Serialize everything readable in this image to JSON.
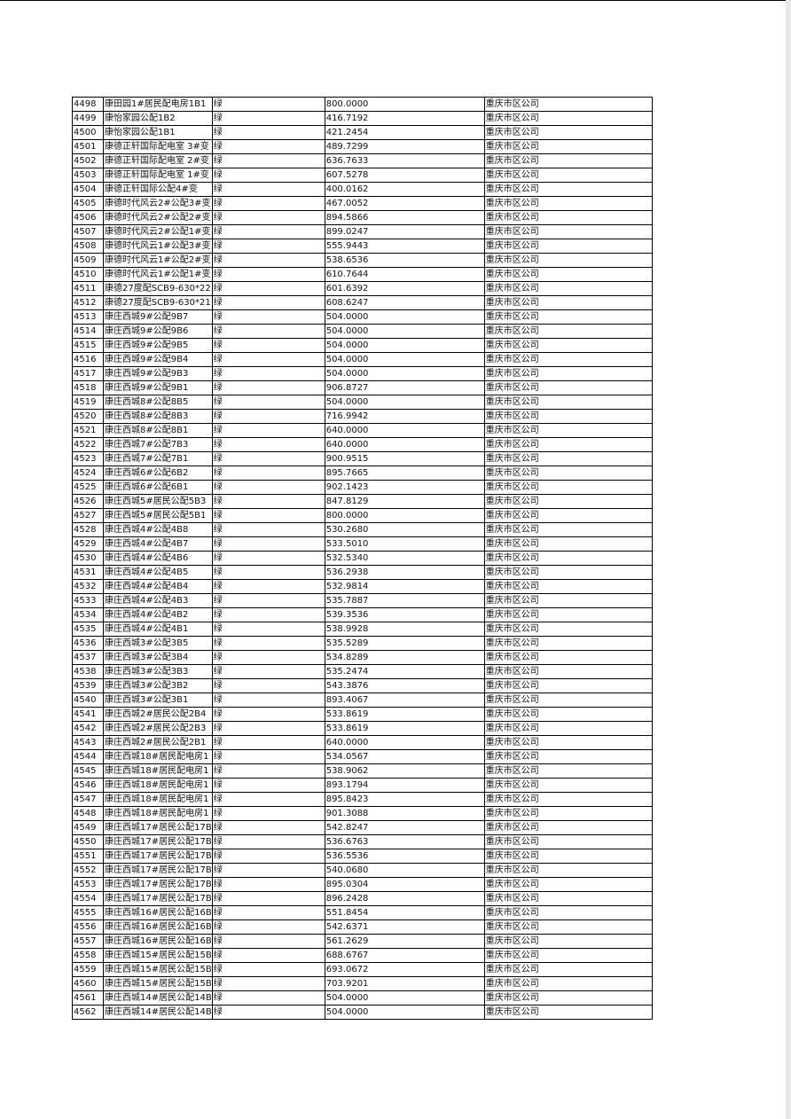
{
  "rows": [
    [
      "4498",
      "康田园1#居民配电房1B1",
      "绿",
      "800.0000",
      "重庆市区公司"
    ],
    [
      "4499",
      "康怡家园公配1B2",
      "绿",
      "416.7192",
      "重庆市区公司"
    ],
    [
      "4500",
      "康怡家园公配1B1",
      "绿",
      "421.2454",
      "重庆市区公司"
    ],
    [
      "4501",
      "康德正轩国际配电室 3#变",
      "绿",
      "489.7299",
      "重庆市区公司"
    ],
    [
      "4502",
      "康德正轩国际配电室 2#变",
      "绿",
      "636.7633",
      "重庆市区公司"
    ],
    [
      "4503",
      "康德正轩国际配电室 1#变",
      "绿",
      "607.5278",
      "重庆市区公司"
    ],
    [
      "4504",
      "康德正轩国际公配4#变",
      "绿",
      "400.0162",
      "重庆市区公司"
    ],
    [
      "4505",
      "康德时代风云2#公配3#变",
      "绿",
      "467.0052",
      "重庆市区公司"
    ],
    [
      "4506",
      "康德时代风云2#公配2#变",
      "绿",
      "894.5866",
      "重庆市区公司"
    ],
    [
      "4507",
      "康德时代风云2#公配1#变",
      "绿",
      "899.0247",
      "重庆市区公司"
    ],
    [
      "4508",
      "康德时代风云1#公配3#变",
      "绿",
      "555.9443",
      "重庆市区公司"
    ],
    [
      "4509",
      "康德时代风云1#公配2#变",
      "绿",
      "538.6536",
      "重庆市区公司"
    ],
    [
      "4510",
      "康德时代风云1#公配1#变",
      "绿",
      "610.7644",
      "重庆市区公司"
    ],
    [
      "4511",
      "康德27度配SCB9-630*22",
      "绿",
      "601.6392",
      "重庆市区公司"
    ],
    [
      "4512",
      "康德27度配SCB9-630*21",
      "绿",
      "608.6247",
      "重庆市区公司"
    ],
    [
      "4513",
      "康庄西城9#公配9B7",
      "绿",
      "504.0000",
      "重庆市区公司"
    ],
    [
      "4514",
      "康庄西城9#公配9B6",
      "绿",
      "504.0000",
      "重庆市区公司"
    ],
    [
      "4515",
      "康庄西城9#公配9B5",
      "绿",
      "504.0000",
      "重庆市区公司"
    ],
    [
      "4516",
      "康庄西城9#公配9B4",
      "绿",
      "504.0000",
      "重庆市区公司"
    ],
    [
      "4517",
      "康庄西城9#公配9B3",
      "绿",
      "504.0000",
      "重庆市区公司"
    ],
    [
      "4518",
      "康庄西城9#公配9B1",
      "绿",
      "906.8727",
      "重庆市区公司"
    ],
    [
      "4519",
      "康庄西城8#公配8B5",
      "绿",
      "504.0000",
      "重庆市区公司"
    ],
    [
      "4520",
      "康庄西城8#公配8B3",
      "绿",
      "716.9942",
      "重庆市区公司"
    ],
    [
      "4521",
      "康庄西城8#公配8B1",
      "绿",
      "640.0000",
      "重庆市区公司"
    ],
    [
      "4522",
      "康庄西城7#公配7B3",
      "绿",
      "640.0000",
      "重庆市区公司"
    ],
    [
      "4523",
      "康庄西城7#公配7B1",
      "绿",
      "900.9515",
      "重庆市区公司"
    ],
    [
      "4524",
      "康庄西城6#公配6B2",
      "绿",
      "895.7665",
      "重庆市区公司"
    ],
    [
      "4525",
      "康庄西城6#公配6B1",
      "绿",
      "902.1423",
      "重庆市区公司"
    ],
    [
      "4526",
      "康庄西城5#居民公配5B3",
      "绿",
      "847.8129",
      "重庆市区公司"
    ],
    [
      "4527",
      "康庄西城5#居民公配5B1",
      "绿",
      "800.0000",
      "重庆市区公司"
    ],
    [
      "4528",
      "康庄西城4#公配4B8",
      "绿",
      "530.2680",
      "重庆市区公司"
    ],
    [
      "4529",
      "康庄西城4#公配4B7",
      "绿",
      "533.5010",
      "重庆市区公司"
    ],
    [
      "4530",
      "康庄西城4#公配4B6",
      "绿",
      "532.5340",
      "重庆市区公司"
    ],
    [
      "4531",
      "康庄西城4#公配4B5",
      "绿",
      "536.2938",
      "重庆市区公司"
    ],
    [
      "4532",
      "康庄西城4#公配4B4",
      "绿",
      "532.9814",
      "重庆市区公司"
    ],
    [
      "4533",
      "康庄西城4#公配4B3",
      "绿",
      "535.7887",
      "重庆市区公司"
    ],
    [
      "4534",
      "康庄西城4#公配4B2",
      "绿",
      "539.3536",
      "重庆市区公司"
    ],
    [
      "4535",
      "康庄西城4#公配4B1",
      "绿",
      "538.9928",
      "重庆市区公司"
    ],
    [
      "4536",
      "康庄西城3#公配3B5",
      "绿",
      "535.5289",
      "重庆市区公司"
    ],
    [
      "4537",
      "康庄西城3#公配3B4",
      "绿",
      "534.8289",
      "重庆市区公司"
    ],
    [
      "4538",
      "康庄西城3#公配3B3",
      "绿",
      "535.2474",
      "重庆市区公司"
    ],
    [
      "4539",
      "康庄西城3#公配3B2",
      "绿",
      "543.3876",
      "重庆市区公司"
    ],
    [
      "4540",
      "康庄西城3#公配3B1",
      "绿",
      "893.4067",
      "重庆市区公司"
    ],
    [
      "4541",
      "康庄西城2#居民公配2B4",
      "绿",
      "533.8619",
      "重庆市区公司"
    ],
    [
      "4542",
      "康庄西城2#居民公配2B3",
      "绿",
      "533.8619",
      "重庆市区公司"
    ],
    [
      "4543",
      "康庄西城2#居民公配2B1",
      "绿",
      "640.0000",
      "重庆市区公司"
    ],
    [
      "4544",
      "康庄西城18#居民配电房1",
      "绿",
      "534.0567",
      "重庆市区公司"
    ],
    [
      "4545",
      "康庄西城18#居民配电房1",
      "绿",
      "538.9062",
      "重庆市区公司"
    ],
    [
      "4546",
      "康庄西城18#居民配电房1",
      "绿",
      "893.1794",
      "重庆市区公司"
    ],
    [
      "4547",
      "康庄西城18#居民配电房1",
      "绿",
      "895.8423",
      "重庆市区公司"
    ],
    [
      "4548",
      "康庄西城18#居民配电房1",
      "绿",
      "901.3088",
      "重庆市区公司"
    ],
    [
      "4549",
      "康庄西城17#居民公配17B",
      "绿",
      "542.8247",
      "重庆市区公司"
    ],
    [
      "4550",
      "康庄西城17#居民公配17B",
      "绿",
      "536.6763",
      "重庆市区公司"
    ],
    [
      "4551",
      "康庄西城17#居民公配17B",
      "绿",
      "536.5536",
      "重庆市区公司"
    ],
    [
      "4552",
      "康庄西城17#居民公配17B",
      "绿",
      "540.0680",
      "重庆市区公司"
    ],
    [
      "4553",
      "康庄西城17#居民公配17B",
      "绿",
      "895.0304",
      "重庆市区公司"
    ],
    [
      "4554",
      "康庄西城17#居民公配17B",
      "绿",
      "896.2428",
      "重庆市区公司"
    ],
    [
      "4555",
      "康庄西城16#居民公配16B",
      "绿",
      "551.8454",
      "重庆市区公司"
    ],
    [
      "4556",
      "康庄西城16#居民公配16B",
      "绿",
      "542.6371",
      "重庆市区公司"
    ],
    [
      "4557",
      "康庄西城16#居民公配16B",
      "绿",
      "561.2629",
      "重庆市区公司"
    ],
    [
      "4558",
      "康庄西城15#居民公配15B",
      "绿",
      "688.6767",
      "重庆市区公司"
    ],
    [
      "4559",
      "康庄西城15#居民公配15B",
      "绿",
      "693.0672",
      "重庆市区公司"
    ],
    [
      "4560",
      "康庄西城15#居民公配15B",
      "绿",
      "703.9201",
      "重庆市区公司"
    ],
    [
      "4561",
      "康庄西城14#居民公配14B",
      "绿",
      "504.0000",
      "重庆市区公司"
    ],
    [
      "4562",
      "康庄西城14#居民公配14B",
      "绿",
      "504.0000",
      "重庆市区公司"
    ]
  ]
}
